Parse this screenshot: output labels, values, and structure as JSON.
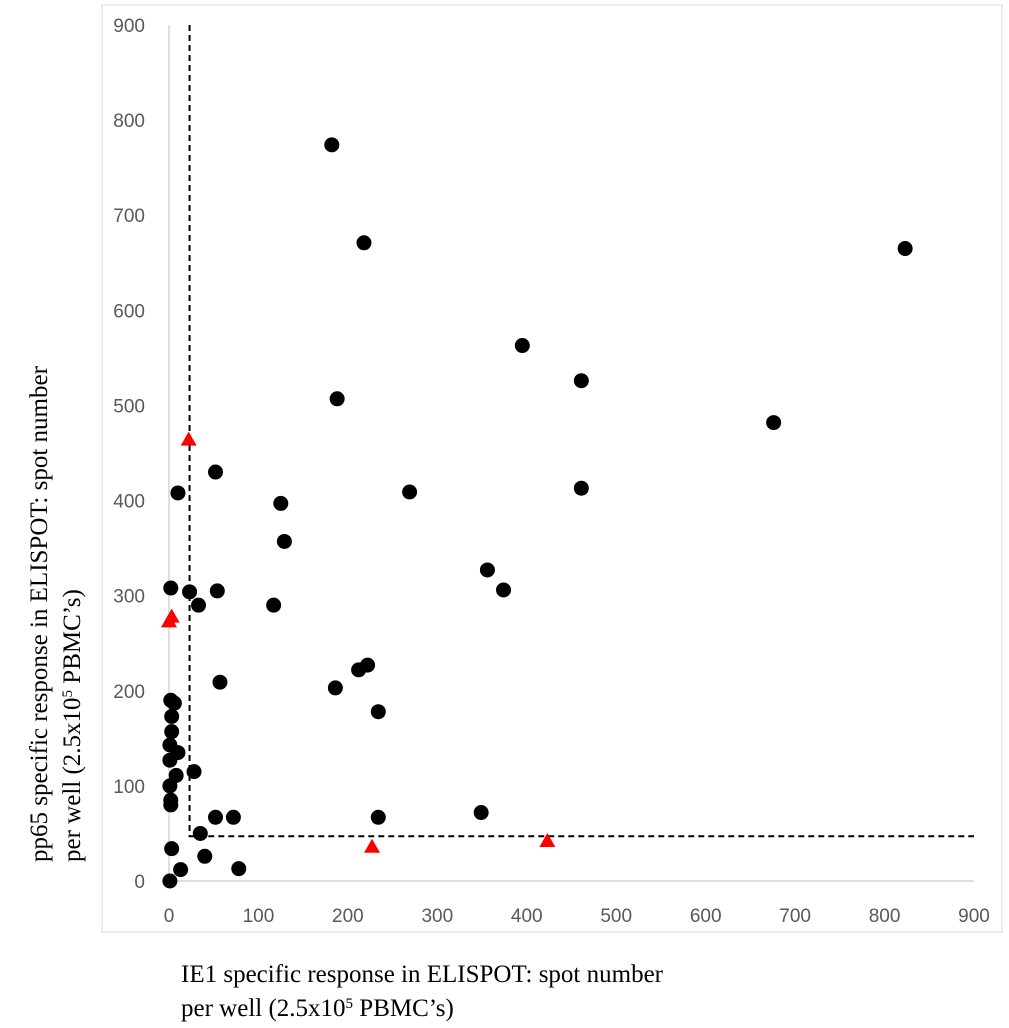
{
  "chart_data": {
    "type": "scatter",
    "xlabel_line1": "IE1 specific response in ELISPOT: spot number",
    "xlabel_line2_prefix": "per well (2.5x10",
    "xlabel_line2_sup": "5",
    "xlabel_line2_suffix": " PBMC’s)",
    "ylabel_line1": "pp65 specific response in ELISPOT: spot number",
    "ylabel_line2_prefix": "per well (2.5x10",
    "ylabel_line2_sup": "5",
    "ylabel_line2_suffix": " PBMC’s)",
    "xlim": [
      0,
      900
    ],
    "ylim": [
      0,
      900
    ],
    "xticks": [
      "0",
      "100",
      "200",
      "300",
      "400",
      "500",
      "600",
      "700",
      "800",
      "900"
    ],
    "yticks": [
      "0",
      "100",
      "200",
      "300",
      "400",
      "500",
      "600",
      "700",
      "800",
      "900"
    ],
    "grid": false,
    "threshold_x": 23,
    "threshold_y": 47,
    "colors": {
      "circles": "#000000",
      "triangles": "#ff0000",
      "threshold": "#000000",
      "frame": "#d9d9d9",
      "axis": "#bfbfbf"
    },
    "series": [
      {
        "marker": "circle",
        "points": [
          [
            182,
            774
          ],
          [
            218,
            671
          ],
          [
            823,
            665
          ],
          [
            395,
            563
          ],
          [
            461,
            526
          ],
          [
            188,
            507
          ],
          [
            676,
            482
          ],
          [
            52,
            430
          ],
          [
            10,
            408
          ],
          [
            269,
            409
          ],
          [
            461,
            413
          ],
          [
            125,
            397
          ],
          [
            129,
            357
          ],
          [
            356,
            327
          ],
          [
            374,
            306
          ],
          [
            2,
            308
          ],
          [
            23,
            304
          ],
          [
            54,
            305
          ],
          [
            33,
            290
          ],
          [
            117,
            290
          ],
          [
            57,
            209
          ],
          [
            186,
            203
          ],
          [
            212,
            222
          ],
          [
            222,
            227
          ],
          [
            234,
            178
          ],
          [
            2,
            190
          ],
          [
            6,
            187
          ],
          [
            3,
            173
          ],
          [
            3,
            157
          ],
          [
            10,
            135
          ],
          [
            1,
            143
          ],
          [
            1,
            127
          ],
          [
            8,
            111
          ],
          [
            28,
            115
          ],
          [
            1,
            100
          ],
          [
            2,
            85
          ],
          [
            2,
            80
          ],
          [
            349,
            72
          ],
          [
            234,
            67
          ],
          [
            52,
            67
          ],
          [
            72,
            67
          ],
          [
            35,
            50
          ],
          [
            3,
            34
          ],
          [
            40,
            26
          ],
          [
            13,
            12
          ],
          [
            78,
            13
          ],
          [
            1,
            0
          ]
        ]
      },
      {
        "marker": "triangle",
        "points": [
          [
            22,
            464
          ],
          [
            3,
            278
          ],
          [
            0,
            273
          ],
          [
            227,
            36
          ],
          [
            423,
            42
          ]
        ]
      }
    ]
  }
}
